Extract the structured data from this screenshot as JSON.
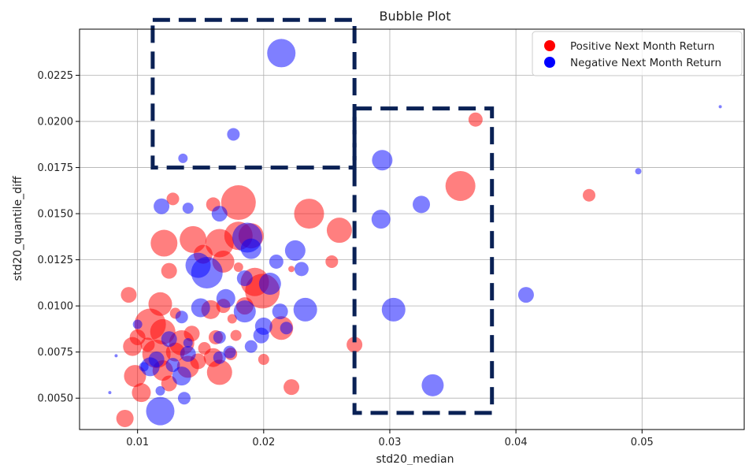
{
  "chart_data": {
    "type": "scatter",
    "title": "Bubble Plot",
    "xlabel": "std20_median",
    "ylabel": "std20_quantile_diff",
    "xlim": [
      0.0054,
      0.0581
    ],
    "ylim": [
      0.0033,
      0.025
    ],
    "xticks": [
      0.01,
      0.02,
      0.03,
      0.04,
      0.05
    ],
    "xtick_labels": [
      "0.01",
      "0.02",
      "0.03",
      "0.04",
      "0.05"
    ],
    "yticks": [
      0.005,
      0.0075,
      0.01,
      0.0125,
      0.015,
      0.0175,
      0.02,
      0.0225
    ],
    "ytick_labels": [
      "0.0050",
      "0.0075",
      "0.0100",
      "0.0125",
      "0.0150",
      "0.0175",
      "0.0200",
      "0.0225"
    ],
    "grid": true,
    "legend": {
      "placement": "top-right",
      "entries": [
        {
          "label": "Positive Next Month Return",
          "color": "#ff0000"
        },
        {
          "label": "Negative Next Month Return",
          "color": "#0000ff"
        }
      ]
    },
    "colors": {
      "positive": "#ff0000",
      "negative": "#0000ff",
      "annotation": "#0a2155"
    },
    "annotations": [
      {
        "type": "dashed-rectangle",
        "x": [
          0.0112,
          0.0272
        ],
        "y": [
          0.0175,
          0.0255
        ]
      },
      {
        "type": "dashed-rectangle",
        "x": [
          0.0272,
          0.0381
        ],
        "y": [
          0.0042,
          0.0207
        ]
      }
    ],
    "series": [
      {
        "name": "Positive Next Month Return",
        "color": "#ff0000",
        "points": [
          [
            0.0368,
            0.0201,
            9
          ],
          [
            0.0356,
            0.0165,
            19
          ],
          [
            0.0458,
            0.016,
            8
          ],
          [
            0.0236,
            0.015,
            19
          ],
          [
            0.018,
            0.0156,
            22
          ],
          [
            0.016,
            0.0155,
            9
          ],
          [
            0.0128,
            0.0158,
            8
          ],
          [
            0.026,
            0.0141,
            16
          ],
          [
            0.0121,
            0.0134,
            17
          ],
          [
            0.0144,
            0.0136,
            17
          ],
          [
            0.0165,
            0.0134,
            18
          ],
          [
            0.019,
            0.0138,
            16
          ],
          [
            0.018,
            0.0138,
            18
          ],
          [
            0.0152,
            0.0128,
            12
          ],
          [
            0.0168,
            0.0124,
            14
          ],
          [
            0.0254,
            0.0124,
            8
          ],
          [
            0.0125,
            0.0119,
            10
          ],
          [
            0.0222,
            0.012,
            4
          ],
          [
            0.0199,
            0.0108,
            22
          ],
          [
            0.0193,
            0.0113,
            18
          ],
          [
            0.0093,
            0.0106,
            10
          ],
          [
            0.0118,
            0.0101,
            15
          ],
          [
            0.0185,
            0.01,
            11
          ],
          [
            0.0168,
            0.01,
            9
          ],
          [
            0.0158,
            0.0098,
            12
          ],
          [
            0.013,
            0.0096,
            7
          ],
          [
            0.011,
            0.009,
            20
          ],
          [
            0.01,
            0.0083,
            10
          ],
          [
            0.0096,
            0.0078,
            12
          ],
          [
            0.012,
            0.0086,
            16
          ],
          [
            0.0143,
            0.0085,
            10
          ],
          [
            0.0178,
            0.0084,
            7
          ],
          [
            0.0162,
            0.0083,
            9
          ],
          [
            0.0115,
            0.0074,
            18
          ],
          [
            0.013,
            0.0075,
            12
          ],
          [
            0.014,
            0.0067,
            14
          ],
          [
            0.016,
            0.0072,
            12
          ],
          [
            0.0148,
            0.007,
            10
          ],
          [
            0.012,
            0.0065,
            13
          ],
          [
            0.0165,
            0.0064,
            16
          ],
          [
            0.0174,
            0.0074,
            8
          ],
          [
            0.0098,
            0.0062,
            14
          ],
          [
            0.0125,
            0.0058,
            10
          ],
          [
            0.0103,
            0.0053,
            12
          ],
          [
            0.009,
            0.0039,
            11
          ],
          [
            0.0214,
            0.0088,
            15
          ],
          [
            0.02,
            0.0071,
            7
          ],
          [
            0.0222,
            0.0056,
            10
          ],
          [
            0.0272,
            0.0079,
            10
          ],
          [
            0.0135,
            0.008,
            16
          ],
          [
            0.0108,
            0.0079,
            9
          ],
          [
            0.0153,
            0.0077,
            8
          ],
          [
            0.0175,
            0.0093,
            6
          ],
          [
            0.018,
            0.0121,
            6
          ]
        ]
      },
      {
        "name": "Negative Next Month Return",
        "color": "#0000ff",
        "points": [
          [
            0.0214,
            0.0237,
            18
          ],
          [
            0.0176,
            0.0193,
            8
          ],
          [
            0.0136,
            0.018,
            6
          ],
          [
            0.0294,
            0.0179,
            13
          ],
          [
            0.0325,
            0.0155,
            11
          ],
          [
            0.0293,
            0.0147,
            12
          ],
          [
            0.0497,
            0.0173,
            4
          ],
          [
            0.0562,
            0.0208,
            2
          ],
          [
            0.0408,
            0.0106,
            10
          ],
          [
            0.0303,
            0.0098,
            15
          ],
          [
            0.0334,
            0.0057,
            14
          ],
          [
            0.0119,
            0.0154,
            10
          ],
          [
            0.014,
            0.0153,
            7
          ],
          [
            0.0165,
            0.015,
            10
          ],
          [
            0.0187,
            0.0137,
            19
          ],
          [
            0.019,
            0.0131,
            13
          ],
          [
            0.0225,
            0.013,
            13
          ],
          [
            0.021,
            0.0124,
            9
          ],
          [
            0.023,
            0.012,
            9
          ],
          [
            0.0148,
            0.0122,
            16
          ],
          [
            0.0155,
            0.0118,
            20
          ],
          [
            0.0185,
            0.0115,
            10
          ],
          [
            0.0205,
            0.0112,
            14
          ],
          [
            0.017,
            0.0104,
            12
          ],
          [
            0.0185,
            0.0097,
            14
          ],
          [
            0.015,
            0.0099,
            12
          ],
          [
            0.0135,
            0.0094,
            8
          ],
          [
            0.0213,
            0.0097,
            10
          ],
          [
            0.0233,
            0.0098,
            15
          ],
          [
            0.02,
            0.0089,
            11
          ],
          [
            0.0218,
            0.0088,
            8
          ],
          [
            0.0165,
            0.0083,
            8
          ],
          [
            0.0198,
            0.0084,
            10
          ],
          [
            0.019,
            0.0078,
            8
          ],
          [
            0.0125,
            0.0082,
            10
          ],
          [
            0.014,
            0.0074,
            10
          ],
          [
            0.0115,
            0.0071,
            10
          ],
          [
            0.0128,
            0.0068,
            9
          ],
          [
            0.011,
            0.0067,
            12
          ],
          [
            0.0173,
            0.0075,
            8
          ],
          [
            0.0165,
            0.0072,
            8
          ],
          [
            0.0135,
            0.0062,
            12
          ],
          [
            0.0137,
            0.005,
            8
          ],
          [
            0.0118,
            0.0054,
            6
          ],
          [
            0.0118,
            0.0043,
            18
          ],
          [
            0.0078,
            0.0053,
            2
          ],
          [
            0.0083,
            0.0073,
            2
          ],
          [
            0.0105,
            0.0067,
            6
          ],
          [
            0.014,
            0.008,
            6
          ],
          [
            0.01,
            0.009,
            6
          ]
        ]
      }
    ]
  }
}
